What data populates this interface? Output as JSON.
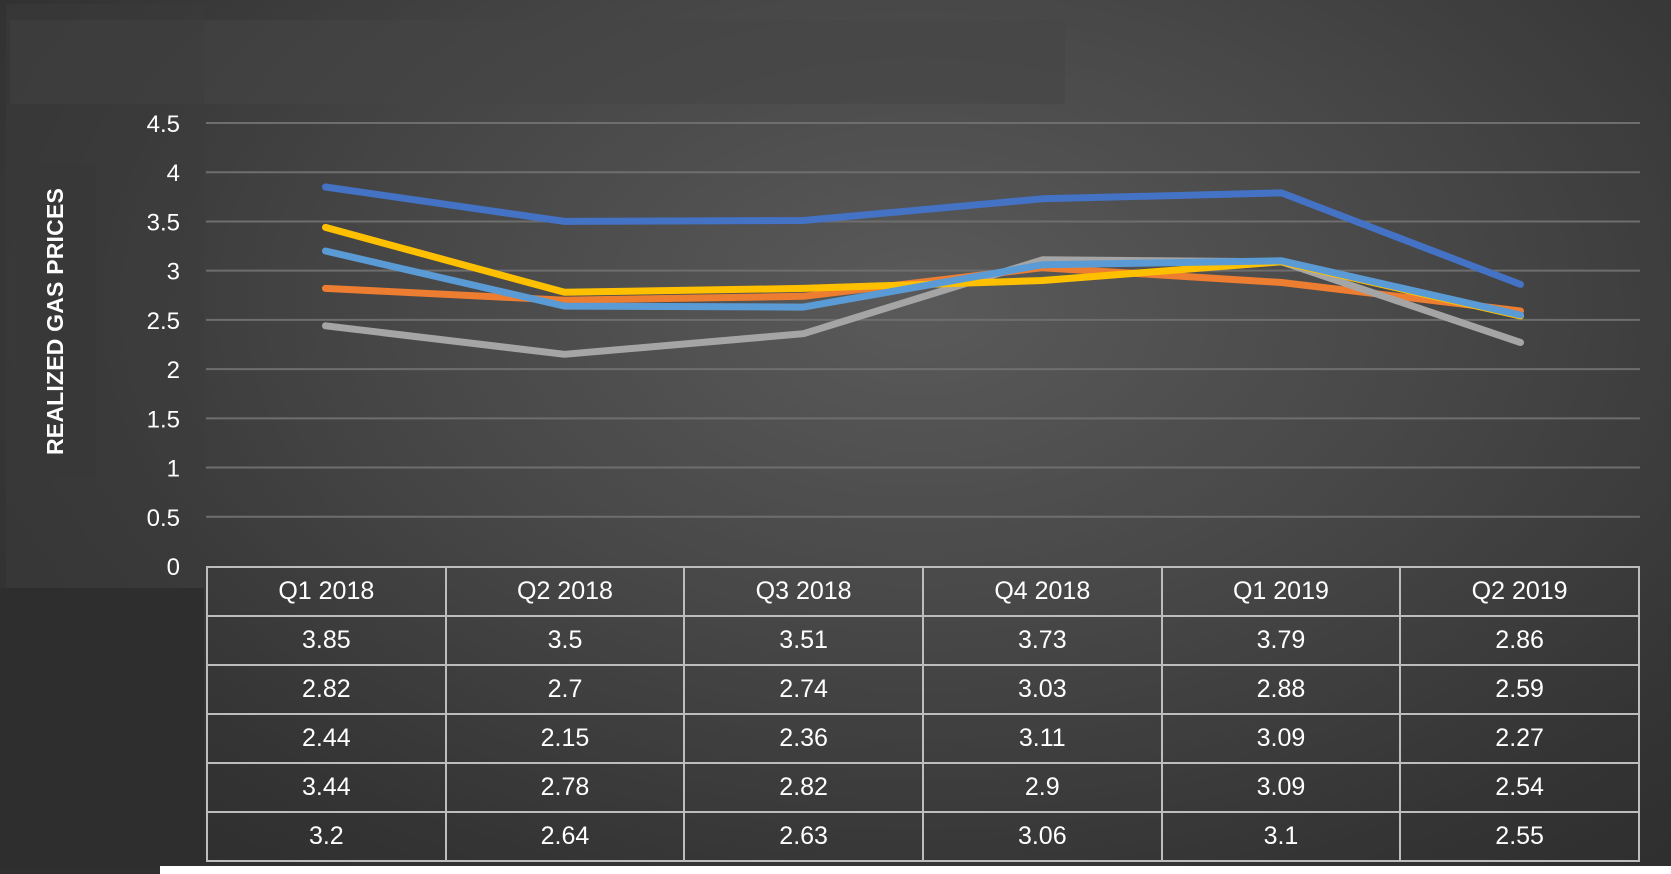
{
  "chart_data": {
    "type": "line",
    "title": "",
    "xlabel": "",
    "ylabel": "REALIZED GAS PRICES",
    "categories": [
      "Q1 2018",
      "Q2 2018",
      "Q3 2018",
      "Q4 2018",
      "Q1 2019",
      "Q2 2019"
    ],
    "ylim": [
      0,
      4.5
    ],
    "yticks": [
      "0",
      "0.5",
      "1",
      "1.5",
      "2",
      "2.5",
      "3",
      "3.5",
      "4",
      "4.5"
    ],
    "grid": true,
    "legend": "none",
    "data_table": true,
    "series": [
      {
        "color": "#4472C4",
        "values": [
          3.85,
          3.5,
          3.51,
          3.73,
          3.79,
          2.86
        ]
      },
      {
        "color": "#ED7D31",
        "values": [
          2.82,
          2.7,
          2.74,
          3.03,
          2.88,
          2.59
        ]
      },
      {
        "color": "#A5A5A5",
        "values": [
          2.44,
          2.15,
          2.36,
          3.11,
          3.09,
          2.27
        ]
      },
      {
        "color": "#FFC000",
        "values": [
          3.44,
          2.78,
          2.82,
          2.9,
          3.09,
          2.54
        ]
      },
      {
        "color": "#5B9BD5",
        "values": [
          3.2,
          2.64,
          2.63,
          3.06,
          3.1,
          2.55
        ]
      }
    ]
  }
}
